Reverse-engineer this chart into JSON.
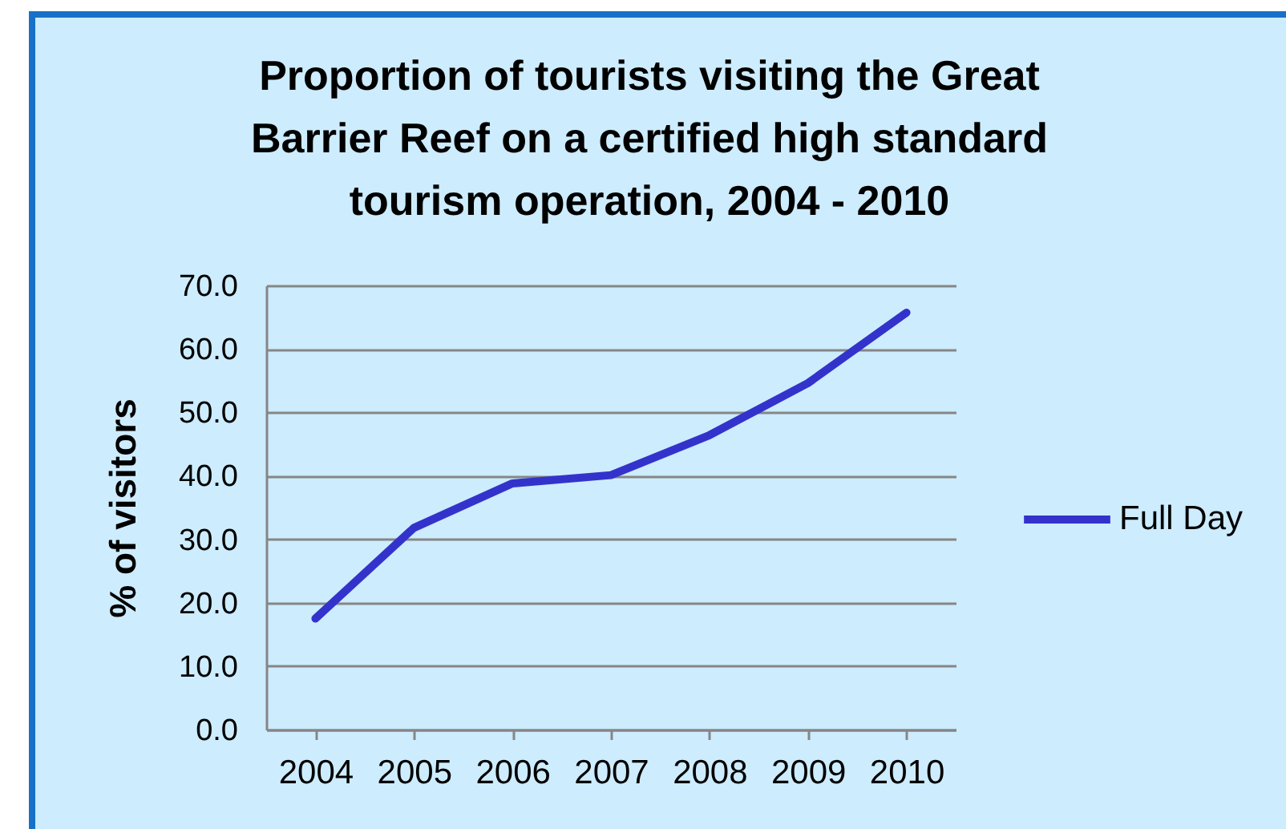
{
  "chart_data": {
    "type": "line",
    "title": "Proportion of tourists visiting the Great Barrier Reef on a certified high standard tourism operation, 2004 - 2010",
    "ylabel": "% of visitors",
    "categories": [
      "2004",
      "2005",
      "2006",
      "2007",
      "2008",
      "2009",
      "2010"
    ],
    "series": [
      {
        "name": "Full Day",
        "color": "#3333cc",
        "values": [
          17.5,
          31.8,
          38.8,
          40.1,
          46.4,
          54.6,
          65.7
        ]
      }
    ],
    "ylim": [
      0,
      70
    ],
    "yticks": [
      {
        "value": 0,
        "label": "0.0"
      },
      {
        "value": 10,
        "label": "10.0"
      },
      {
        "value": 20,
        "label": "20.0"
      },
      {
        "value": 30,
        "label": "30.0"
      },
      {
        "value": 40,
        "label": "40.0"
      },
      {
        "value": 50,
        "label": "50.0"
      },
      {
        "value": 60,
        "label": "60.0"
      },
      {
        "value": 70,
        "label": "70.0"
      }
    ],
    "grid": "y",
    "legend": "right"
  }
}
